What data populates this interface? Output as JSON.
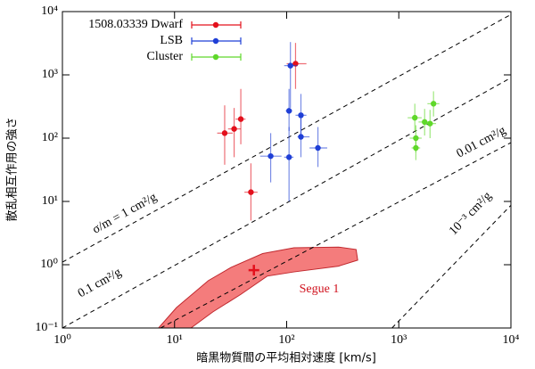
{
  "chart_data": {
    "type": "scatter",
    "x_label": "暗黒物質間の平均相対速度 [km/s]",
    "y_label": "散乱相互作用の強さ",
    "xscale": "log",
    "yscale": "log",
    "xlim": [
      1,
      10000
    ],
    "ylim": [
      0.1,
      10000
    ],
    "xticks": [
      {
        "value": 1,
        "label": "10⁰"
      },
      {
        "value": 10,
        "label": "10¹"
      },
      {
        "value": 100,
        "label": "10²"
      },
      {
        "value": 1000,
        "label": "10³"
      },
      {
        "value": 10000,
        "label": "10⁴"
      }
    ],
    "yticks": [
      {
        "value": 0.1,
        "label": "10⁻¹"
      },
      {
        "value": 1,
        "label": "10⁰"
      },
      {
        "value": 10,
        "label": "10¹"
      },
      {
        "value": 100,
        "label": "10²"
      },
      {
        "value": 1000,
        "label": "10³"
      },
      {
        "value": 10000,
        "label": "10⁴"
      }
    ],
    "legend": "upper left",
    "series": [
      {
        "name": "1508.03339 Dwarf",
        "color": "#e3101c",
        "x": [
          28,
          34,
          39,
          48,
          120
        ],
        "x_low": [
          24,
          30,
          35,
          42,
          100
        ],
        "x_high": [
          33,
          39,
          43,
          55,
          150
        ],
        "values": [
          120,
          140,
          200,
          14,
          1500
        ],
        "y_low": [
          38,
          50,
          80,
          5,
          600
        ],
        "y_high": [
          330,
          300,
          600,
          40,
          3200
        ]
      },
      {
        "name": "LSB",
        "color": "#1f3fd6",
        "x": [
          108,
          105,
          134,
          134,
          72,
          105,
          190
        ],
        "x_low": [
          95,
          98,
          120,
          125,
          58,
          95,
          160
        ],
        "x_high": [
          125,
          112,
          150,
          160,
          90,
          115,
          230
        ],
        "values": [
          1400,
          270,
          230,
          105,
          52,
          50,
          70
        ],
        "y_low": [
          300,
          130,
          110,
          50,
          20,
          10,
          35
        ],
        "y_high": [
          3300,
          600,
          500,
          230,
          120,
          150,
          150
        ]
      },
      {
        "name": "Cluster",
        "color": "#5fd82a",
        "x": [
          1390,
          1420,
          1420,
          1700,
          1900,
          2040
        ],
        "x_low": [
          1200,
          1250,
          1300,
          1500,
          1650,
          1800
        ],
        "x_high": [
          1600,
          1600,
          1550,
          1900,
          2150,
          2300
        ],
        "values": [
          210,
          100,
          70,
          180,
          170,
          350
        ],
        "y_low": [
          130,
          60,
          45,
          110,
          100,
          220
        ],
        "y_high": [
          350,
          160,
          110,
          290,
          280,
          550
        ]
      }
    ],
    "lines": [
      {
        "label": "σ/m = 1 cm²/g",
        "x": [
          1,
          10000
        ],
        "y": [
          1.1,
          9000
        ]
      },
      {
        "label": "0.1 cm²/g",
        "x": [
          1,
          10000
        ],
        "y": [
          0.1,
          900
        ]
      },
      {
        "label": "0.01 cm²/g",
        "x": [
          7.5,
          10000
        ],
        "y": [
          0.1,
          85
        ]
      },
      {
        "label": "10⁻³ cm²/g",
        "x": [
          870,
          10000
        ],
        "y": [
          0.1,
          8.7
        ]
      }
    ],
    "region": {
      "label": "Segue 1",
      "color": "#f47c7c",
      "x": [
        7.2,
        10.4,
        20,
        32,
        61,
        116,
        290,
        416,
        430,
        290,
        116,
        67,
        39,
        22,
        14
      ],
      "y": [
        0.1,
        0.21,
        0.56,
        0.91,
        1.5,
        1.85,
        1.9,
        1.74,
        1.18,
        0.95,
        0.77,
        0.66,
        0.34,
        0.18,
        0.1
      ]
    },
    "marker": {
      "x": 51,
      "y": 0.82,
      "color": "#e3101c"
    }
  }
}
